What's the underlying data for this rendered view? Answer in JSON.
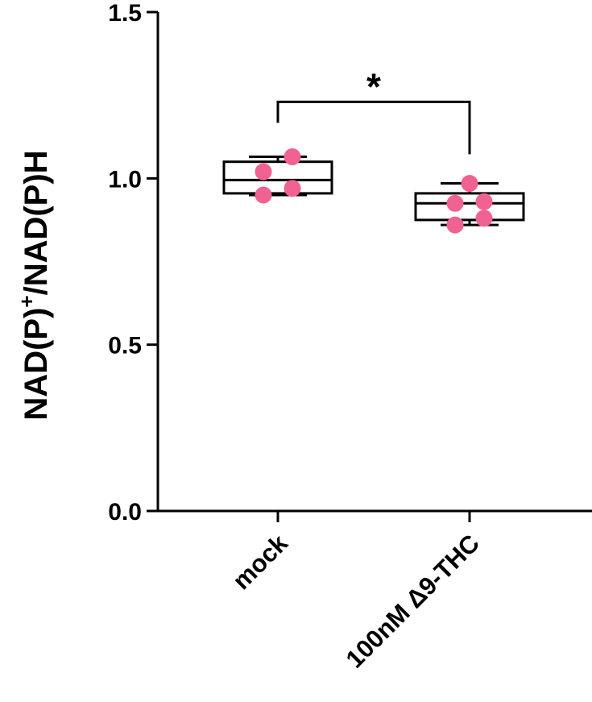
{
  "chart_data": {
    "type": "box",
    "title": "",
    "xlabel": "",
    "ylabel": {
      "main": "NAD(P)",
      "superscript": "+",
      "rest": "/NAD(P)H"
    },
    "ylim": [
      0,
      1.5
    ],
    "yticks": [
      {
        "value": 0.0,
        "label": "0.0"
      },
      {
        "value": 0.5,
        "label": "0.5"
      },
      {
        "value": 1.0,
        "label": "1.0"
      },
      {
        "value": 1.5,
        "label": "1.5"
      }
    ],
    "categories": [
      "mock",
      "100nM Δ9-THC"
    ],
    "groups": [
      {
        "category": "mock",
        "min": 0.95,
        "q1": 0.955,
        "median": 0.995,
        "q3": 1.05,
        "max": 1.065,
        "points": [
          0.95,
          0.97,
          1.02,
          1.065
        ]
      },
      {
        "category": "100nM Δ9-THC",
        "min": 0.86,
        "q1": 0.875,
        "median": 0.925,
        "q3": 0.955,
        "max": 0.985,
        "points": [
          0.86,
          0.88,
          0.925,
          0.93,
          0.985
        ]
      }
    ],
    "point_color": "#f06292",
    "significance": {
      "from": 0,
      "to": 1,
      "y": 1.23,
      "label": "*"
    },
    "grid": false,
    "legend": "none"
  }
}
